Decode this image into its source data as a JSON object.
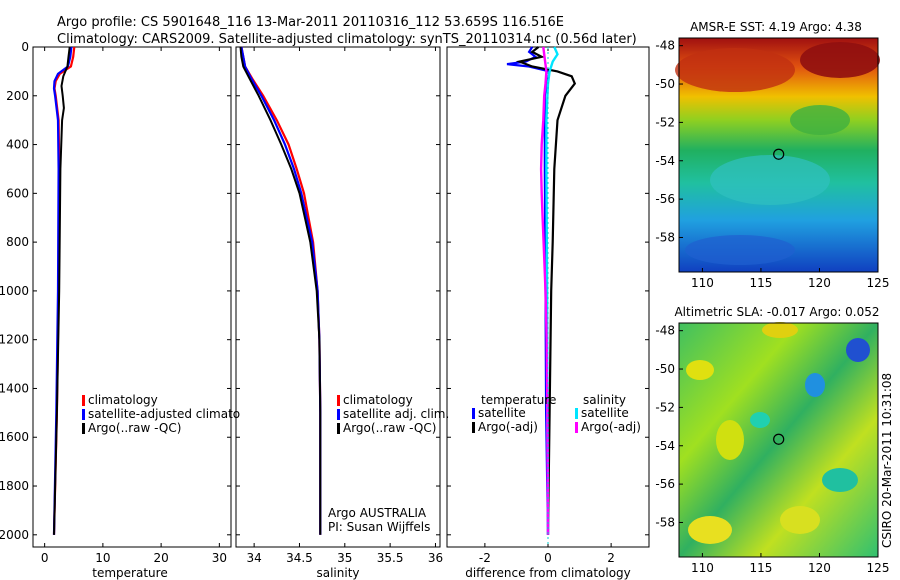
{
  "header": {
    "line1": "Argo profile: CS 5901648_116 13-Mar-2011 20110316_112 53.659S 116.516E",
    "line2": "Climatology: CARS2009. Satellite-adjusted climatology: synTS_20110314.nc (0.56d later)"
  },
  "colors": {
    "climatology": "#ff0000",
    "satellite": "#0000ff",
    "argo": "#000000",
    "sal_satellite": "#00e5ff",
    "sal_argo": "#ff00ff"
  },
  "chart_data": [
    {
      "type": "line",
      "id": "temperature",
      "xlabel": "temperature",
      "ylabel": "",
      "xlim": [
        -2,
        32
      ],
      "ylim": [
        2050,
        0
      ],
      "xticks": [
        "0",
        "10",
        "20",
        "30"
      ],
      "yticks": [
        "0",
        "200",
        "400",
        "600",
        "800",
        "1000",
        "1200",
        "1400",
        "1600",
        "1800",
        "2000"
      ],
      "legend": [
        "climatology",
        "satellite-adjusted climatology",
        "Argo(..raw -QC)"
      ],
      "series": [
        {
          "name": "climatology",
          "depth": [
            0,
            40,
            80,
            110,
            140,
            170,
            200,
            300,
            500,
            1000,
            1500,
            2000
          ],
          "values": [
            5.1,
            4.9,
            4.5,
            2.6,
            1.9,
            1.7,
            1.9,
            2.4,
            2.5,
            2.4,
            2.1,
            1.6
          ]
        },
        {
          "name": "satellite-adjusted climatology",
          "depth": [
            0,
            40,
            80,
            110,
            140,
            170,
            200,
            300,
            500,
            1000,
            1500,
            2000
          ],
          "values": [
            4.6,
            4.4,
            4.0,
            2.3,
            1.7,
            1.6,
            1.8,
            2.3,
            2.4,
            2.3,
            2.0,
            1.6
          ]
        },
        {
          "name": "Argo(..raw -QC)",
          "depth": [
            0,
            40,
            80,
            120,
            160,
            200,
            250,
            300,
            500,
            1000,
            1500,
            2000
          ],
          "values": [
            4.3,
            4.1,
            3.9,
            3.2,
            2.9,
            3.1,
            3.3,
            3.0,
            2.7,
            2.5,
            2.1,
            1.6
          ]
        }
      ]
    },
    {
      "type": "line",
      "id": "salinity",
      "xlabel": "salinity",
      "ylabel": "",
      "xlim": [
        33.8,
        36.05
      ],
      "ylim": [
        2050,
        0
      ],
      "xticks": [
        "34",
        "34.5",
        "35",
        "35.5",
        "36"
      ],
      "legend": [
        "climatology",
        "satellite adj. clim.",
        "Argo(..raw -QC)"
      ],
      "annotation": [
        "Argo AUSTRALIA",
        "PI: Susan Wijffels"
      ],
      "series": [
        {
          "name": "climatology",
          "depth": [
            0,
            40,
            80,
            130,
            200,
            300,
            400,
            500,
            600,
            700,
            800,
            1000,
            1200,
            1500,
            2000
          ],
          "values": [
            33.86,
            33.88,
            33.9,
            33.98,
            34.1,
            34.25,
            34.38,
            34.47,
            34.55,
            34.6,
            34.65,
            34.7,
            34.72,
            34.73,
            34.73
          ]
        },
        {
          "name": "satellite adj. clim.",
          "depth": [
            0,
            40,
            80,
            130,
            200,
            300,
            400,
            500,
            600,
            700,
            800,
            1000,
            1200,
            1500,
            2000
          ],
          "values": [
            33.86,
            33.88,
            33.9,
            33.97,
            34.08,
            34.22,
            34.34,
            34.44,
            34.52,
            34.58,
            34.64,
            34.7,
            34.72,
            34.73,
            34.73
          ]
        },
        {
          "name": "Argo(..raw -QC)",
          "depth": [
            0,
            40,
            80,
            130,
            200,
            300,
            400,
            500,
            600,
            700,
            800,
            1000,
            1200,
            1500,
            2000
          ],
          "values": [
            33.85,
            33.86,
            33.88,
            33.95,
            34.05,
            34.18,
            34.3,
            34.41,
            34.5,
            34.56,
            34.62,
            34.69,
            34.72,
            34.73,
            34.73
          ]
        }
      ]
    },
    {
      "type": "line",
      "id": "difference",
      "xlabel": "difference from climatology",
      "ylabel": "",
      "xlim": [
        -3.2,
        3.2
      ],
      "ylim": [
        2050,
        0
      ],
      "xticks": [
        "-2",
        "0",
        "2"
      ],
      "legend_temperature": {
        "heading": "temperature",
        "entries": [
          "satellite",
          "Argo(-adj)"
        ]
      },
      "legend_salinity": {
        "heading": "salinity",
        "entries": [
          "satellite",
          "Argo(-adj)"
        ]
      },
      "series": [
        {
          "name": "temperature satellite",
          "depth": [
            0,
            20,
            40,
            60,
            70,
            80,
            100,
            130,
            160,
            200,
            300,
            500,
            1000,
            1500,
            2000
          ],
          "values": [
            -0.5,
            -0.6,
            -0.4,
            -0.7,
            -1.3,
            -0.6,
            0.05,
            0.0,
            -0.05,
            -0.1,
            -0.1,
            -0.1,
            -0.08,
            -0.06,
            0.0
          ]
        },
        {
          "name": "temperature Argo(-adj)",
          "depth": [
            0,
            20,
            40,
            60,
            80,
            100,
            120,
            150,
            200,
            300,
            500,
            800,
            1000,
            1500,
            2000
          ],
          "values": [
            -0.3,
            -0.5,
            -0.2,
            -0.9,
            -0.5,
            0.3,
            0.75,
            0.85,
            0.55,
            0.3,
            0.2,
            0.15,
            0.1,
            0.05,
            0.0
          ]
        },
        {
          "name": "salinity satellite",
          "depth": [
            0,
            30,
            60,
            100,
            150,
            200,
            300,
            500,
            1000,
            1500,
            2000
          ],
          "values": [
            0.2,
            0.3,
            0.15,
            0.05,
            0.0,
            -0.02,
            -0.05,
            -0.05,
            -0.03,
            -0.02,
            0.0
          ]
        },
        {
          "name": "salinity Argo(-adj)",
          "depth": [
            0,
            50,
            100,
            150,
            200,
            300,
            400,
            500,
            600,
            700,
            800,
            1000,
            1200,
            1500,
            2000
          ],
          "values": [
            -0.15,
            -0.1,
            -0.05,
            -0.08,
            -0.12,
            -0.15,
            -0.2,
            -0.22,
            -0.2,
            -0.17,
            -0.14,
            -0.08,
            -0.04,
            -0.02,
            0.0
          ]
        }
      ]
    },
    {
      "type": "heatmap",
      "id": "sst-map",
      "title": "AMSR-E SST: 4.19  Argo: 4.38",
      "xlim": [
        108,
        125
      ],
      "ylim": [
        -59.8,
        -47.6
      ],
      "xticks": [
        "110",
        "115",
        "120",
        "125"
      ],
      "yticks": [
        "-48",
        "-50",
        "-52",
        "-54",
        "-56",
        "-58"
      ],
      "marker": {
        "lon": 116.516,
        "lat": -53.659
      }
    },
    {
      "type": "heatmap",
      "id": "sla-map",
      "title": "Altimetric SLA: -0.017  Argo: 0.052",
      "xlim": [
        108,
        125
      ],
      "ylim": [
        -59.8,
        -47.6
      ],
      "xticks": [
        "110",
        "115",
        "120",
        "125"
      ],
      "yticks": [
        "-48",
        "-50",
        "-52",
        "-54",
        "-56",
        "-58"
      ],
      "marker": {
        "lon": 116.516,
        "lat": -53.659
      }
    }
  ],
  "footer": {
    "side_stamp": "CSIRO  20-Mar-2011 10:31:08"
  }
}
